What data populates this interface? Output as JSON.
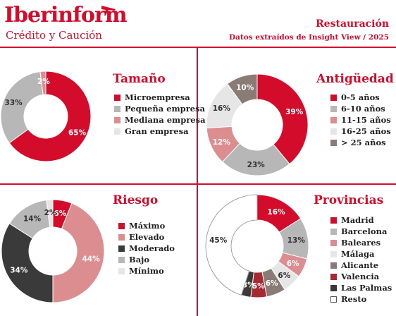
{
  "header": {
    "logo": "Iberinform",
    "logo_sub": "Crédito y Caución",
    "title": "Restauración",
    "subtitle": "Datos extraídos de Insight View / 2025"
  },
  "colors": {
    "red": "#d40c2b",
    "pink": "#dc8d8f",
    "light_pink": "#f0bbbd",
    "dark_gray": "#3a3a3a",
    "mid_gray": "#b7b7b7",
    "light_gray": "#e6e6e6",
    "brown": "#8b7b77",
    "white": "#ffffff"
  },
  "chart_data": [
    {
      "type": "pie",
      "title": "Tamaño",
      "series": [
        {
          "name": "Microempresa",
          "value": 65,
          "label": "65%",
          "color": "#d40c2b"
        },
        {
          "name": "Pequeña empresa",
          "value": 33,
          "label": "33%",
          "color": "#b7b7b7"
        },
        {
          "name": "Mediana empresa",
          "value": 2,
          "label": "2%",
          "color": "#dc8d8f"
        },
        {
          "name": "Gran empresa",
          "value": 0,
          "label": "",
          "color": "#e6e6e6"
        }
      ]
    },
    {
      "type": "pie",
      "title": "Antigüedad",
      "series": [
        {
          "name": "0-5 años",
          "value": 39,
          "label": "39%",
          "color": "#d40c2b"
        },
        {
          "name": "6-10 años",
          "value": 23,
          "label": "23%",
          "color": "#b7b7b7"
        },
        {
          "name": "11-15 años",
          "value": 12,
          "label": "12%",
          "color": "#dc8d8f"
        },
        {
          "name": "16-25 años",
          "value": 16,
          "label": "16%",
          "color": "#e6e6e6"
        },
        {
          "name": "> 25 años",
          "value": 10,
          "label": "10%",
          "color": "#8b7b77"
        }
      ]
    },
    {
      "type": "pie",
      "title": "Riesgo",
      "series": [
        {
          "name": "Máximo",
          "value": 6,
          "label": "6%",
          "color": "#d40c2b"
        },
        {
          "name": "Elevado",
          "value": 44,
          "label": "44%",
          "color": "#dc8d8f"
        },
        {
          "name": "Moderado",
          "value": 34,
          "label": "34%",
          "color": "#3a3a3a"
        },
        {
          "name": "Bajo",
          "value": 14,
          "label": "14%",
          "color": "#b7b7b7"
        },
        {
          "name": "Mínimo",
          "value": 2,
          "label": "2%",
          "color": "#e6e6e6"
        }
      ]
    },
    {
      "type": "pie",
      "title": "Provincias",
      "series": [
        {
          "name": "Madrid",
          "value": 16,
          "label": "16%",
          "color": "#d40c2b"
        },
        {
          "name": "Barcelona",
          "value": 13,
          "label": "13%",
          "color": "#b7b7b7"
        },
        {
          "name": "Baleares",
          "value": 6,
          "label": "6%",
          "color": "#dc8d8f"
        },
        {
          "name": "Málaga",
          "value": 6,
          "label": "6%",
          "color": "#e6e6e6"
        },
        {
          "name": "Alicante",
          "value": 6,
          "label": "6%",
          "color": "#8b7b77"
        },
        {
          "name": "Valencia",
          "value": 5,
          "label": "5%",
          "color": "#a52a33"
        },
        {
          "name": "Las Palmas",
          "value": 3,
          "label": "3%",
          "color": "#3a3a3a"
        },
        {
          "name": "Resto",
          "value": 45,
          "label": "45%",
          "color": "#ffffff"
        }
      ]
    }
  ]
}
